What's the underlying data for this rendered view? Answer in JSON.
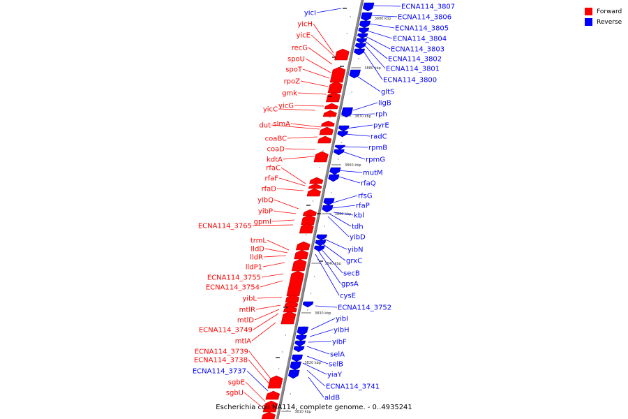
{
  "caption": "Escherichia coli NA114, complete genome. - 0..4935241",
  "legend": [
    {
      "label": "Forward",
      "color": "#ff0000"
    },
    {
      "label": "Reverse",
      "color": "#0000ff"
    }
  ],
  "colors": {
    "forward": "#ff0000",
    "reverse": "#0000ff",
    "axis": "#888888"
  },
  "scale_labels": [
    "3880 kbp",
    "3880 kbp",
    "3870 kbp",
    "3860 kbp",
    "3850 kbp",
    "3840 kbp",
    "3830 kbp",
    "3820 kbp",
    "3810 kbp"
  ],
  "forward_genes": [
    "yicI",
    "yicH",
    "yicE",
    "recG",
    "spoU",
    "spoT",
    "rpoZ",
    "gmk",
    "yicC",
    "yicG",
    "dut",
    "slmA",
    "coaBC",
    "coaD",
    "kdtA",
    "rfaC",
    "rfaF",
    "rfaD",
    "yibQ",
    "yibP",
    "gpmI",
    "ECNA114_3765",
    "trmL",
    "lldD",
    "lldR",
    "lldP1",
    "ECNA114_3755",
    "ECNA114_3754",
    "yibL",
    "mtlR",
    "mtlD",
    "ECNA114_3749",
    "mtlA",
    "ECNA114_3739",
    "ECNA114_3738",
    "ECNA114_3737",
    "sgbE",
    "sgbU"
  ],
  "reverse_genes": [
    "ECNA114_3807",
    "ECNA114_3806",
    "ECNA114_3805",
    "ECNA114_3804",
    "ECNA114_3803",
    "ECNA114_3802",
    "ECNA114_3801",
    "ECNA114_3800",
    "gltS",
    "ligB",
    "rph",
    "pyrE",
    "radC",
    "rpmB",
    "rpmG",
    "mutM",
    "rfaQ",
    "rfsG",
    "rfaP",
    "kbl",
    "tdh",
    "yibD",
    "yibN",
    "grxC",
    "secB",
    "gpsA",
    "cysE",
    "ECNA114_3752",
    "yibI",
    "yibH",
    "yibF",
    "selA",
    "selB",
    "yiaY",
    "ECNA114_3741",
    "aldB"
  ],
  "forward_strand_override": {
    "yicI": "reverse",
    "ECNA114_3737": "reverse"
  }
}
